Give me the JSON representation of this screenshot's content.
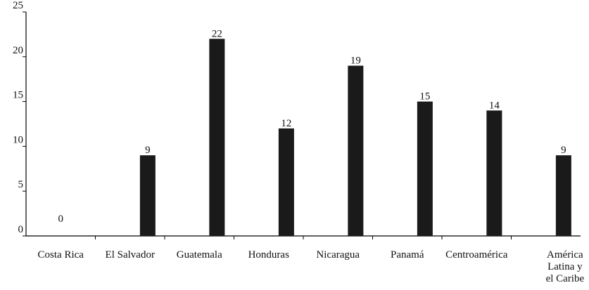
{
  "chart_data": {
    "type": "bar",
    "categories": [
      [
        "Costa Rica"
      ],
      [
        "El Salvador"
      ],
      [
        "Guatemala"
      ],
      [
        "Honduras"
      ],
      [
        "Nicaragua"
      ],
      [
        "Panamá"
      ],
      [
        "Centroamérica"
      ],
      [
        "América",
        "Latina y",
        "el Caribe"
      ]
    ],
    "values": [
      0,
      9,
      22,
      12,
      19,
      15,
      14,
      9
    ],
    "data_labels": [
      "0",
      "9",
      "22",
      "12",
      "19",
      "15",
      "14",
      "9"
    ],
    "ylim": [
      0,
      25
    ],
    "yticks": [
      0,
      5,
      10,
      15,
      20,
      25
    ],
    "ytick_labels": [
      "0",
      "5",
      "10",
      "15",
      "20",
      "25"
    ],
    "title": "",
    "xlabel": "",
    "ylabel": "",
    "grid": false,
    "bar_color": "#1a1a1a",
    "text_color": "#111111"
  }
}
